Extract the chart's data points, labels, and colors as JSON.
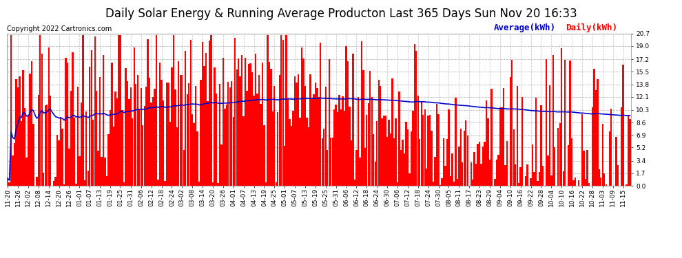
{
  "title": "Daily Solar Energy & Running Average Producton Last 365 Days Sun Nov 20 16:33",
  "copyright": "Copyright 2022 Cartronics.com",
  "legend_avg": "Average(kWh)",
  "legend_daily": "Daily(kWh)",
  "avg_color": "#0000cc",
  "bar_color": "#ff0000",
  "background_color": "#ffffff",
  "grid_color": "#aaaaaa",
  "ylim": [
    0.0,
    20.7
  ],
  "yticks": [
    0.0,
    1.7,
    3.4,
    5.2,
    6.9,
    8.6,
    10.3,
    12.1,
    13.8,
    15.5,
    17.2,
    19.0,
    20.7
  ],
  "title_fontsize": 12,
  "copyright_fontsize": 7,
  "legend_fontsize": 9,
  "tick_label_fontsize": 6.5,
  "x_labels": [
    "11-20",
    "11-26",
    "12-02",
    "12-08",
    "12-14",
    "12-20",
    "12-26",
    "01-01",
    "01-07",
    "01-13",
    "01-19",
    "01-25",
    "01-31",
    "02-06",
    "02-12",
    "02-18",
    "02-24",
    "03-02",
    "03-08",
    "03-14",
    "03-20",
    "03-26",
    "04-01",
    "04-07",
    "04-13",
    "04-19",
    "04-25",
    "05-01",
    "05-07",
    "05-13",
    "05-19",
    "05-25",
    "05-31",
    "06-06",
    "06-12",
    "06-18",
    "06-24",
    "06-30",
    "07-06",
    "07-12",
    "07-18",
    "07-24",
    "07-30",
    "08-05",
    "08-11",
    "08-17",
    "08-23",
    "08-29",
    "09-04",
    "09-10",
    "09-16",
    "09-22",
    "09-28",
    "10-04",
    "10-10",
    "10-16",
    "10-22",
    "10-28",
    "11-03",
    "11-09",
    "11-15"
  ],
  "x_label_step": 6
}
